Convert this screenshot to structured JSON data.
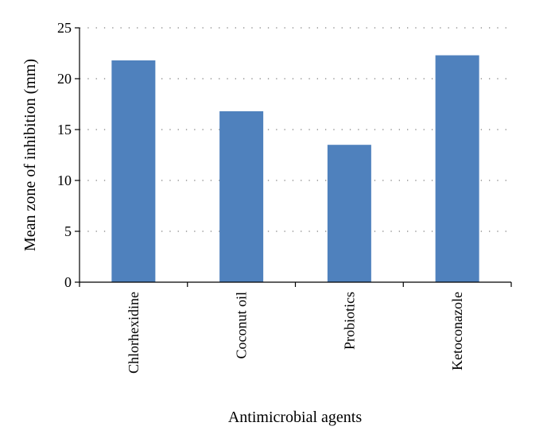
{
  "chart_data": {
    "type": "bar",
    "title": "",
    "xlabel": "Antimicrobial agents",
    "ylabel": "Mean zone of inhibition (mm)",
    "categories": [
      "Chlorhexidine",
      "Coconut oil",
      "Probiotics",
      "Ketoconazole"
    ],
    "values": [
      21.8,
      16.8,
      13.5,
      22.3
    ],
    "ylim": [
      0,
      25
    ],
    "yticks": [
      0,
      5,
      10,
      15,
      20,
      25
    ],
    "grid": "horizontal dotted",
    "bar_color": "#4F81BD"
  }
}
